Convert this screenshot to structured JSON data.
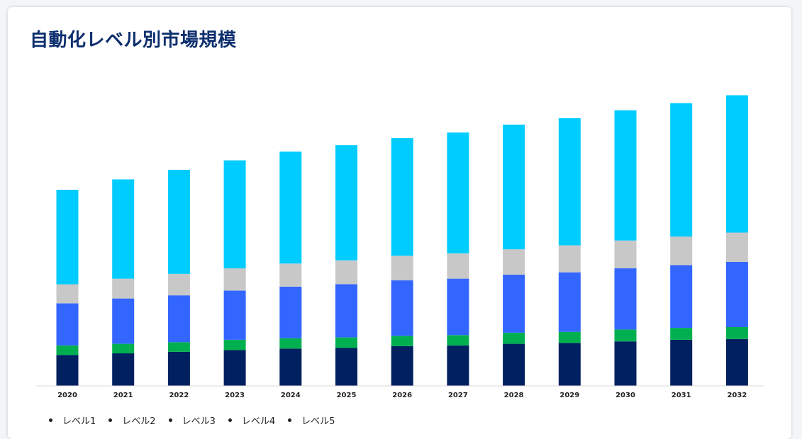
{
  "page": {
    "title": "自動化レベル別市場規模"
  },
  "chart_data": {
    "type": "bar",
    "stacked": true,
    "title": "自動化レベル別市場規模",
    "xlabel": "",
    "ylabel": "",
    "categories": [
      "2020",
      "2021",
      "2022",
      "2023",
      "2024",
      "2025",
      "2026",
      "2027",
      "2028",
      "2029",
      "2030",
      "2031",
      "2032"
    ],
    "ylim": [
      0,
      370
    ],
    "grid": false,
    "legend_position": "bottom-left",
    "series": [
      {
        "name": "レベル1",
        "color": "#002060",
        "values": [
          39,
          41,
          43,
          45,
          47,
          48,
          50,
          51,
          53,
          54,
          56,
          58,
          59
        ]
      },
      {
        "name": "レベル2",
        "color": "#00b050",
        "values": [
          12,
          12,
          12,
          13,
          13,
          13,
          13,
          13,
          14,
          14,
          15,
          15,
          15
        ]
      },
      {
        "name": "レベル3",
        "color": "#3366ff",
        "values": [
          53,
          57,
          59,
          62,
          65,
          67,
          70,
          71,
          73,
          75,
          77,
          79,
          82
        ]
      },
      {
        "name": "レベル4",
        "color": "#c8c8c8",
        "values": [
          24,
          25,
          27,
          28,
          29,
          30,
          31,
          32,
          32,
          34,
          35,
          36,
          37
        ]
      },
      {
        "name": "レベル5",
        "color": "#00ccff",
        "values": [
          119,
          125,
          131,
          136,
          141,
          145,
          148,
          152,
          157,
          160,
          164,
          168,
          173
        ]
      }
    ]
  }
}
